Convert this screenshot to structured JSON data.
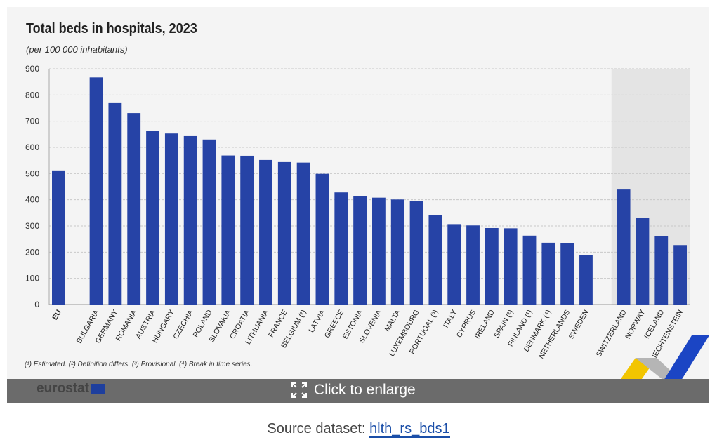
{
  "chart_data": {
    "type": "bar",
    "title": "Total beds in hospitals, 2023",
    "subtitle": "(per 100 000 inhabitants)",
    "ylim": [
      0,
      900
    ],
    "yticks": [
      0,
      100,
      200,
      300,
      400,
      500,
      600,
      700,
      800,
      900
    ],
    "grid": true,
    "groups": [
      {
        "categories": [
          "EU"
        ],
        "values": [
          512
        ]
      },
      {
        "categories": [
          "BULGARIA",
          "GERMANY",
          "ROMANIA",
          "AUSTRIA",
          "HUNGARY",
          "CZECHIA",
          "POLAND",
          "SLOVAKIA",
          "CROATIA",
          "LITHUANIA",
          "FRANCE",
          "BELGIUM (²)",
          "LATVIA",
          "GREECE",
          "ESTONIA",
          "SLOVENIA",
          "MALTA",
          "LUXEMBOURG",
          "PORTUGAL (³)",
          "ITALY",
          "CYPRUS",
          "IRELAND",
          "SPAIN (²)",
          "FINLAND (¹)",
          "DENMARK (⁴)",
          "NETHERLANDS",
          "SWEDEN"
        ],
        "values": [
          867,
          769,
          731,
          663,
          653,
          643,
          630,
          569,
          568,
          552,
          544,
          542,
          499,
          428,
          414,
          408,
          401,
          396,
          341,
          307,
          302,
          292,
          291,
          263,
          236,
          234,
          190
        ]
      },
      {
        "categories": [
          "SWITZERLAND",
          "NORWAY",
          "ICELAND",
          "LIECHTENSTEIN"
        ],
        "values": [
          439,
          332,
          260,
          227
        ],
        "shaded": true
      }
    ],
    "bar_color": "#2643a6",
    "shade_color": "#e4e4e4",
    "footnote": "(¹) Estimated. (²) Definition differs. (³) Provisional. (⁴) Break in time series."
  },
  "footer": {
    "logo": "eurostat",
    "enlarge_label": "Click to enlarge",
    "source_label": "Source dataset:",
    "source_link": "hlth_rs_bds1"
  }
}
